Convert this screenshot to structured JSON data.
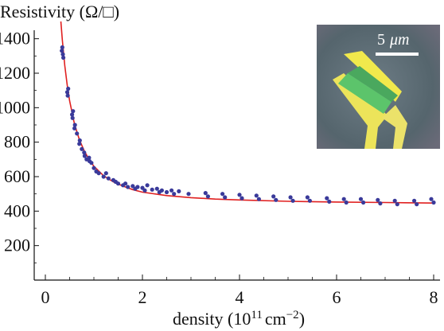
{
  "chart_data": {
    "type": "scatter",
    "ylabel": "Resistivity (Ω/□)",
    "xlabel": "density (10",
    "xlabel_exp": "11",
    "xlabel_unit": "cm",
    "xlabel_unit_exp": "−2",
    "xlabel_close": ")",
    "xlim": [
      0,
      8
    ],
    "ylim": [
      0,
      1500
    ],
    "x_ticks": [
      0,
      2,
      4,
      6,
      8
    ],
    "y_ticks": [
      200,
      400,
      600,
      800,
      1000,
      1200,
      1400
    ],
    "grid": false,
    "series": [
      {
        "kind": "points",
        "color": "#3a3a9a",
        "x": [
          0.34,
          0.35,
          0.36,
          0.37,
          0.45,
          0.46,
          0.47,
          0.55,
          0.56,
          0.57,
          0.6,
          0.61,
          0.65,
          0.7,
          0.71,
          0.75,
          0.8,
          0.81,
          0.85,
          0.9,
          0.91,
          0.95,
          1.0,
          1.05,
          1.1,
          1.2,
          1.25,
          1.3,
          1.4,
          1.45,
          1.5,
          1.6,
          1.65,
          1.7,
          1.8,
          1.85,
          1.9,
          2.0,
          2.05,
          2.1,
          2.2,
          2.3,
          2.35,
          2.4,
          2.5,
          2.6,
          2.65,
          2.75,
          2.95,
          3.3,
          3.35,
          3.65,
          3.7,
          4.0,
          4.05,
          4.35,
          4.4,
          4.7,
          4.75,
          5.05,
          5.1,
          5.4,
          5.45,
          5.8,
          5.85,
          6.15,
          6.2,
          6.5,
          6.55,
          6.85,
          6.9,
          7.2,
          7.25,
          7.6,
          7.65,
          7.95,
          8.0
        ],
        "y": [
          1330,
          1350,
          1310,
          1290,
          1090,
          1070,
          1110,
          960,
          940,
          980,
          880,
          900,
          850,
          790,
          810,
          760,
          740,
          720,
          700,
          710,
          690,
          680,
          650,
          630,
          620,
          600,
          620,
          590,
          580,
          570,
          560,
          550,
          560,
          540,
          545,
          530,
          540,
          535,
          520,
          550,
          525,
          530,
          510,
          520,
          510,
          520,
          500,
          515,
          500,
          505,
          485,
          500,
          480,
          495,
          475,
          490,
          470,
          485,
          465,
          480,
          460,
          480,
          460,
          475,
          455,
          470,
          450,
          470,
          450,
          465,
          445,
          460,
          440,
          460,
          440,
          470,
          450
        ]
      },
      {
        "kind": "fit_line",
        "color": "#e02020",
        "x": [
          0.32,
          0.35,
          0.4,
          0.45,
          0.5,
          0.6,
          0.7,
          0.8,
          0.9,
          1.0,
          1.2,
          1.4,
          1.6,
          1.8,
          2.0,
          2.5,
          3.0,
          3.5,
          4.0,
          5.0,
          6.0,
          7.0,
          8.0
        ],
        "y": [
          1500,
          1395,
          1245,
          1130,
          1040,
          905,
          815,
          750,
          700,
          660,
          605,
          570,
          545,
          525,
          510,
          490,
          478,
          470,
          465,
          457,
          453,
          450,
          447
        ]
      }
    ],
    "inset": {
      "scale_label": "5",
      "scale_unit": "μm",
      "background": "#5a6a72",
      "device_color": "#f1e94c",
      "channel_color": "#5cc46b"
    }
  }
}
